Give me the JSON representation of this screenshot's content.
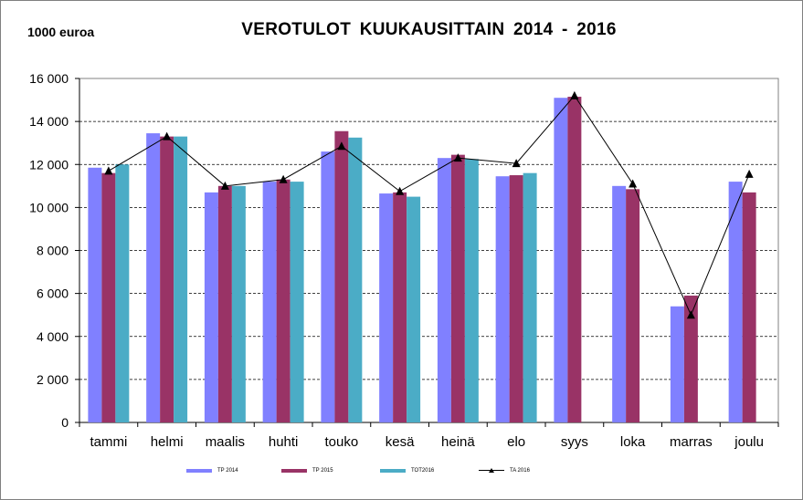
{
  "chart_data": {
    "type": "bar",
    "title": "VEROTULOT  KUUKAUSITTAIN   2014 - 2016",
    "unit_label": "1000 euroa",
    "categories": [
      "tammi",
      "helmi",
      "maalis",
      "huhti",
      "touko",
      "kesä",
      "heinä",
      "elo",
      "syys",
      "loka",
      "marras",
      "joulu"
    ],
    "ylim": [
      0,
      16000
    ],
    "yticks": [
      0,
      2000,
      4000,
      6000,
      8000,
      10000,
      12000,
      14000,
      16000
    ],
    "ytick_labels": [
      "0",
      "2 000",
      "4 000",
      "6 000",
      "8 000",
      "10 000",
      "12 000",
      "14 000",
      "16 000"
    ],
    "grid": true,
    "legend_position": "bottom",
    "series": [
      {
        "name": "TP 2014",
        "type": "bar",
        "color": "#8080FF",
        "values": [
          11850,
          13450,
          10700,
          11200,
          12600,
          10650,
          12300,
          11450,
          15100,
          11000,
          5400,
          11200
        ]
      },
      {
        "name": "TP 2015",
        "type": "bar",
        "color": "#993366",
        "values": [
          11600,
          13300,
          11000,
          11300,
          13550,
          10700,
          12450,
          11500,
          15150,
          10850,
          5900,
          10700
        ]
      },
      {
        "name": "TOT2016",
        "type": "bar",
        "color": "#4BACC6",
        "values": [
          12000,
          13300,
          11000,
          11200,
          13250,
          10500,
          12250,
          11600,
          null,
          null,
          null,
          null
        ]
      },
      {
        "name": "TA 2016",
        "type": "line",
        "color": "#000000",
        "values": [
          11700,
          13300,
          11000,
          11300,
          12850,
          10750,
          12300,
          12050,
          15200,
          11100,
          5000,
          11550
        ]
      }
    ]
  }
}
